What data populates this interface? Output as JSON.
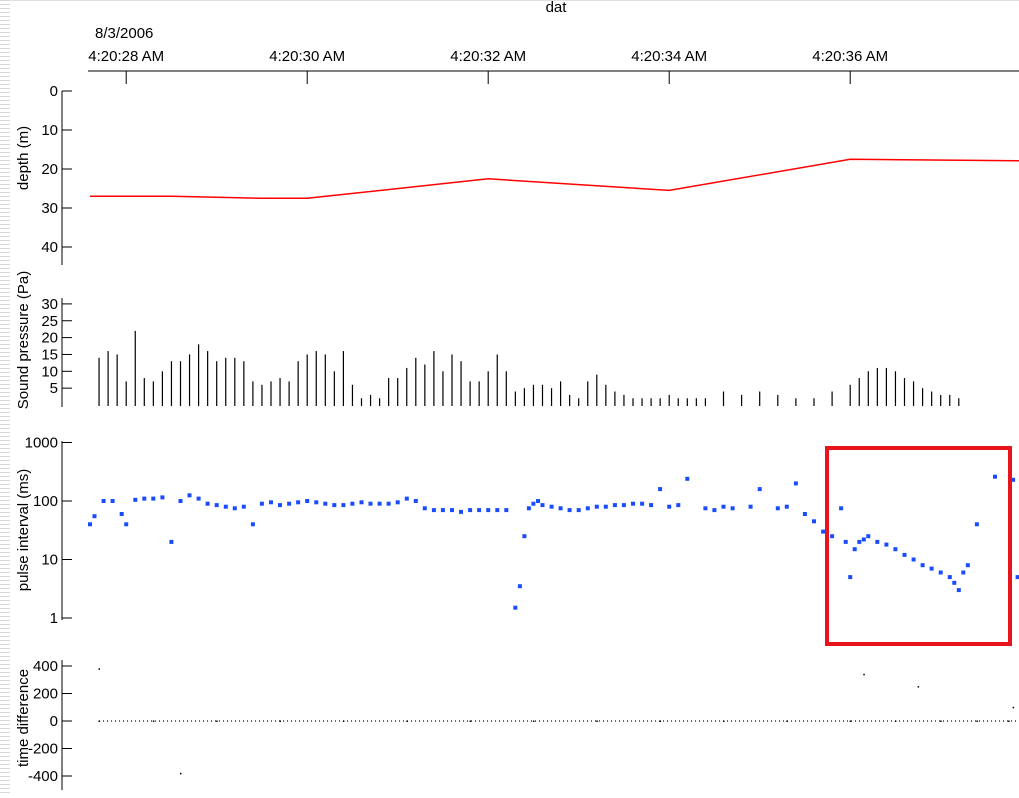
{
  "window": {
    "title_fragment": "dat"
  },
  "colors": {
    "depth_line": "#ff0000",
    "pulse_points": "#1a4cff",
    "highlight_box": "#e8141c",
    "axis": "#000000"
  },
  "chart_data": [
    {
      "type": "line",
      "panel": "depth",
      "xaxis": {
        "date_label": "8/3/2006",
        "ticks": [
          "4:20:28 AM",
          "4:20:30 AM",
          "4:20:32 AM",
          "4:20:34 AM",
          "4:20:36 AM"
        ],
        "xlim": [
          27.6,
          38.5
        ]
      },
      "ylabel": "depth (m)",
      "yticks": [
        "0",
        "10",
        "20",
        "30",
        "40"
      ],
      "ylim": [
        0,
        45
      ],
      "inverted": true,
      "x": [
        27.6,
        28.5,
        29.5,
        30.0,
        32.0,
        34.0,
        36.0,
        38.5
      ],
      "y": [
        27,
        27,
        27.5,
        27.5,
        22.5,
        25.5,
        17.5,
        18
      ]
    },
    {
      "type": "bar",
      "panel": "sound-pressure",
      "ylabel": "Sound pressure (Pa)",
      "yticks": [
        "5",
        "10",
        "15",
        "20",
        "25",
        "30"
      ],
      "ylim": [
        0,
        32
      ],
      "x": [
        27.7,
        27.8,
        27.9,
        28.0,
        28.1,
        28.2,
        28.3,
        28.4,
        28.5,
        28.6,
        28.7,
        28.8,
        28.9,
        29.0,
        29.1,
        29.2,
        29.3,
        29.4,
        29.5,
        29.6,
        29.7,
        29.8,
        29.9,
        30.0,
        30.1,
        30.2,
        30.3,
        30.4,
        30.5,
        30.6,
        30.7,
        30.8,
        30.9,
        31.0,
        31.1,
        31.2,
        31.3,
        31.4,
        31.5,
        31.6,
        31.7,
        31.8,
        31.9,
        32.0,
        32.1,
        32.2,
        32.3,
        32.4,
        32.5,
        32.6,
        32.7,
        32.8,
        32.9,
        33.0,
        33.1,
        33.2,
        33.3,
        33.4,
        33.5,
        33.6,
        33.7,
        33.8,
        33.9,
        34.0,
        34.1,
        34.2,
        34.3,
        34.4,
        34.6,
        34.8,
        35.0,
        35.2,
        35.4,
        35.6,
        35.8,
        36.0,
        36.1,
        36.2,
        36.3,
        36.4,
        36.5,
        36.6,
        36.7,
        36.8,
        36.9,
        37.0,
        37.1,
        37.2
      ],
      "values": [
        14,
        16,
        15,
        7,
        22,
        8,
        7,
        10,
        13,
        13,
        15,
        18,
        16,
        13,
        14,
        14,
        13,
        7,
        6,
        7,
        8,
        7,
        13,
        15,
        16,
        15,
        10,
        16,
        6,
        2,
        3,
        2,
        8,
        8,
        11,
        14,
        12,
        16,
        10,
        15,
        13,
        7,
        7,
        10,
        15,
        10,
        4,
        5,
        6,
        6,
        5,
        7,
        3,
        2,
        7,
        9,
        6,
        4,
        3,
        2,
        2,
        2,
        2,
        3,
        2,
        2,
        2,
        2,
        4,
        3,
        4,
        3,
        2,
        2,
        4,
        6,
        8,
        10,
        11,
        11,
        10,
        8,
        7,
        5,
        4,
        3,
        3,
        2
      ],
      "annotations": [
        "dense burst of pulses near 4:20:36 AM"
      ]
    },
    {
      "type": "scatter",
      "panel": "pulse-interval",
      "ylabel": "pulse interval (ms)",
      "yscale": "log",
      "yticks": [
        "1",
        "10",
        "100",
        "1000"
      ],
      "ylim": [
        1,
        1000
      ],
      "x": [
        27.6,
        27.65,
        27.75,
        27.85,
        27.95,
        28.0,
        28.1,
        28.2,
        28.3,
        28.4,
        28.5,
        28.6,
        28.7,
        28.8,
        28.9,
        29.0,
        29.1,
        29.2,
        29.3,
        29.4,
        29.5,
        29.6,
        29.7,
        29.8,
        29.9,
        30.0,
        30.1,
        30.2,
        30.3,
        30.4,
        30.5,
        30.6,
        30.7,
        30.8,
        30.9,
        31.0,
        31.1,
        31.2,
        31.3,
        31.4,
        31.5,
        31.6,
        31.7,
        31.8,
        31.9,
        32.0,
        32.1,
        32.2,
        32.3,
        32.35,
        32.4,
        32.45,
        32.5,
        32.55,
        32.6,
        32.7,
        32.8,
        32.9,
        33.0,
        33.1,
        33.2,
        33.3,
        33.4,
        33.5,
        33.6,
        33.7,
        33.8,
        33.9,
        34.0,
        34.1,
        34.2,
        34.4,
        34.5,
        34.6,
        34.7,
        34.9,
        35.0,
        35.2,
        35.3,
        35.4,
        35.5,
        35.6,
        35.7,
        35.8,
        35.9,
        35.95,
        36.0,
        36.05,
        36.1,
        36.15,
        36.2,
        36.3,
        36.4,
        36.5,
        36.6,
        36.7,
        36.8,
        36.9,
        37.0,
        37.1,
        37.15,
        37.2,
        37.25,
        37.3,
        37.4,
        37.6,
        37.8,
        37.85,
        37.9
      ],
      "y": [
        40,
        55,
        100,
        100,
        60,
        40,
        105,
        110,
        110,
        115,
        20,
        100,
        125,
        110,
        90,
        85,
        80,
        75,
        80,
        40,
        90,
        95,
        85,
        90,
        95,
        100,
        95,
        90,
        85,
        85,
        90,
        95,
        90,
        90,
        90,
        95,
        110,
        100,
        75,
        70,
        70,
        70,
        65,
        70,
        70,
        70,
        70,
        70,
        1.5,
        3.5,
        25,
        75,
        90,
        100,
        85,
        80,
        75,
        70,
        70,
        75,
        80,
        80,
        85,
        85,
        90,
        90,
        85,
        160,
        80,
        85,
        240,
        75,
        70,
        80,
        75,
        80,
        160,
        75,
        80,
        200,
        60,
        45,
        30,
        25,
        75,
        20,
        5,
        15,
        20,
        22,
        25,
        20,
        18,
        15,
        12,
        10,
        8,
        7,
        6,
        5,
        4,
        3,
        6,
        8,
        40,
        260,
        230,
        5,
        50
      ]
    },
    {
      "type": "scatter",
      "panel": "time-difference",
      "ylabel": "time difference",
      "yticks": [
        "400",
        "200",
        "0",
        "-200",
        "-400"
      ],
      "ylim": [
        -470,
        470
      ],
      "x": [
        27.7,
        28.3,
        29.0,
        29.7,
        30.4,
        31.1,
        31.8,
        32.5,
        33.2,
        33.9,
        34.6,
        35.3,
        36.0,
        36.5,
        37.0,
        37.4,
        37.75,
        38.0
      ],
      "y": [
        0,
        0,
        0,
        0,
        0,
        0,
        0,
        0,
        0,
        0,
        0,
        0,
        0,
        0,
        0,
        0,
        0,
        0
      ],
      "outliers_x": [
        27.7,
        28.6,
        36.15,
        36.75,
        37.8,
        37.95
      ],
      "outliers_y": [
        380,
        -380,
        340,
        250,
        100,
        95
      ]
    }
  ]
}
